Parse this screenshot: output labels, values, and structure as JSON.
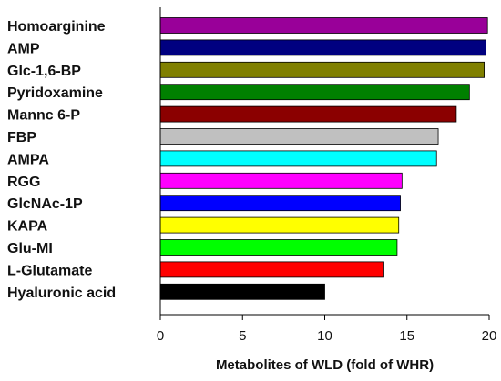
{
  "chart_data": {
    "type": "bar",
    "orientation": "horizontal",
    "categories": [
      "Homoarginine",
      "AMP",
      "Glc-1,6-BP",
      "Pyridoxamine",
      "Mannc 6-P",
      "FBP",
      "AMPA",
      "RGG",
      "GlcNAc-1P",
      "KAPA",
      "Glu-MI",
      "L-Glutamate",
      "Hyaluronic acid"
    ],
    "values": [
      19.9,
      19.8,
      19.7,
      18.8,
      18.0,
      16.9,
      16.8,
      14.7,
      14.6,
      14.5,
      14.4,
      13.6,
      10.0
    ],
    "colors": [
      "#990099",
      "#000080",
      "#808000",
      "#008000",
      "#8B0000",
      "#C0C0C0",
      "#00FFFF",
      "#FF00FF",
      "#0000FF",
      "#FFFF00",
      "#00FF00",
      "#FF0000",
      "#000000"
    ],
    "xlabel": "Metabolites of WLD (fold of WHR)",
    "ylabel": "",
    "title": "",
    "xlim": [
      0,
      20
    ],
    "xticks": [
      0,
      5,
      10,
      15,
      20
    ],
    "grid": false,
    "legend": "none"
  }
}
